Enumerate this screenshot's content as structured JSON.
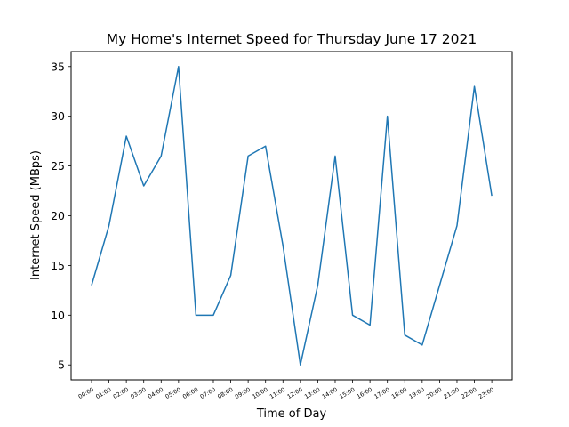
{
  "chart_data": {
    "type": "line",
    "title": "My Home's Internet Speed for Thursday June 17 2021",
    "xlabel": "Time of Day",
    "ylabel": "Internet Speed (MBps)",
    "categories": [
      "00:00",
      "01:00",
      "02:00",
      "03:00",
      "04:00",
      "05:00",
      "06:00",
      "07:00",
      "08:00",
      "09:00",
      "10:00",
      "11:00",
      "12:00",
      "13:00",
      "14:00",
      "15:00",
      "16:00",
      "17:00",
      "18:00",
      "19:00",
      "20:00",
      "21:00",
      "22:00",
      "23:00"
    ],
    "series": [
      {
        "values": [
          13,
          19,
          28,
          23,
          26,
          35,
          10,
          10,
          14,
          26,
          27,
          17,
          5,
          13,
          26,
          10,
          9,
          30,
          8,
          7,
          13,
          19,
          33,
          22
        ],
        "color": "#1f77b4"
      }
    ],
    "yticks": [
      5,
      10,
      15,
      20,
      25,
      30,
      35
    ],
    "ylim": [
      3.5,
      36.5
    ],
    "grid": false,
    "legend": "none"
  }
}
